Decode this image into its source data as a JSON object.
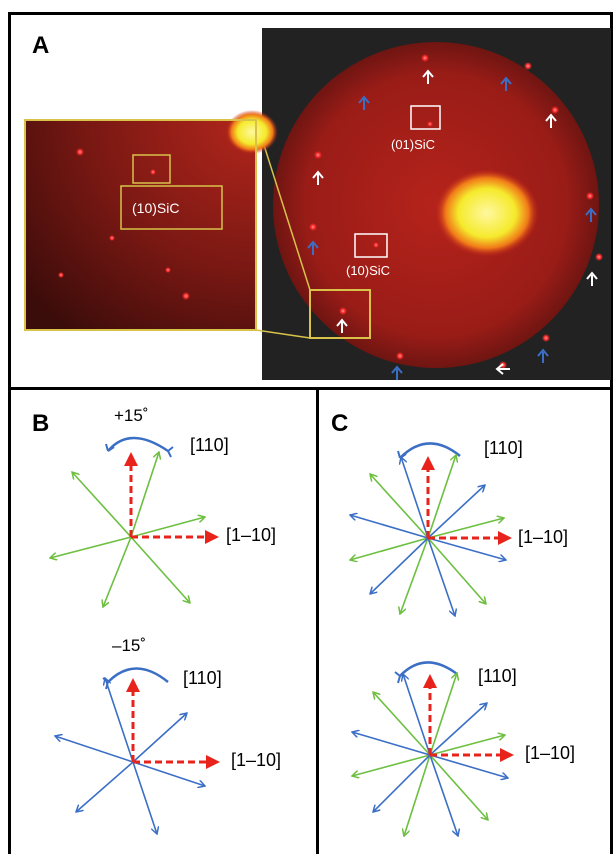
{
  "panels": {
    "A": {
      "letter": "A",
      "label_01": "(01)SiC",
      "label_10_main": "(10)SiC",
      "label_10_inset": "(10)SiC"
    },
    "B": {
      "letter": "B",
      "top": {
        "angle": "+15˚",
        "dir_110": "[110]",
        "dir_1m10": "[1–10]"
      },
      "bottom": {
        "angle": "–15˚",
        "dir_110": "[110]",
        "dir_1m10": "[1–10]"
      }
    },
    "C": {
      "letter": "C",
      "top": {
        "dir_110": "[110]",
        "dir_1m10": "[1–10]"
      },
      "bottom": {
        "dir_110": "[110]",
        "dir_1m10": "[1–10]"
      }
    }
  },
  "colors": {
    "red_axis": "#e8231c",
    "green": "#6cbf3f",
    "blue": "#3b6fc6",
    "yellow": "#d8c24a",
    "leed_bg": "#1e1e1e",
    "leed_disk": "#a31a16"
  }
}
